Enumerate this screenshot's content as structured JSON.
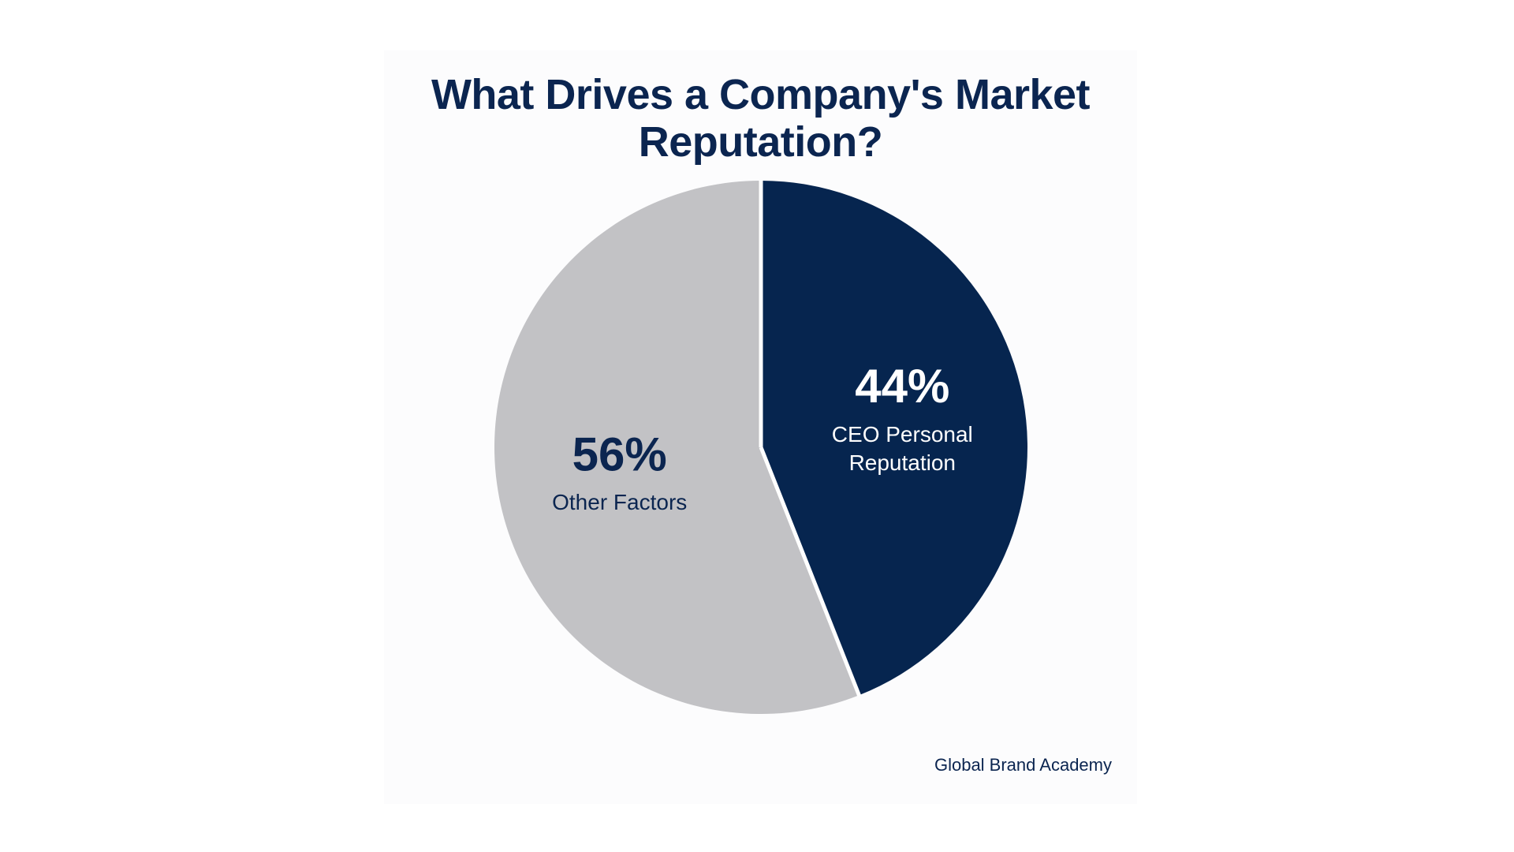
{
  "chart_data": {
    "type": "pie",
    "title": "What Drives a Company's Market Reputation?",
    "slices": [
      {
        "value": 44,
        "value_label": "44%",
        "label_lines": [
          "CEO Personal",
          "Reputation"
        ],
        "color": "#06254f",
        "text_color": "#ffffff"
      },
      {
        "value": 56,
        "value_label": "56%",
        "label_lines": [
          "Other Factors"
        ],
        "color": "#c2c2c5",
        "text_color": "#0b2550"
      }
    ],
    "start": "12 o'clock, clockwise",
    "separator_color": "#ffffff"
  },
  "source": "Global Brand Academy",
  "colors": {
    "title": "#0b2550",
    "background": "#ffffff",
    "panel": "#fcfcfd"
  }
}
